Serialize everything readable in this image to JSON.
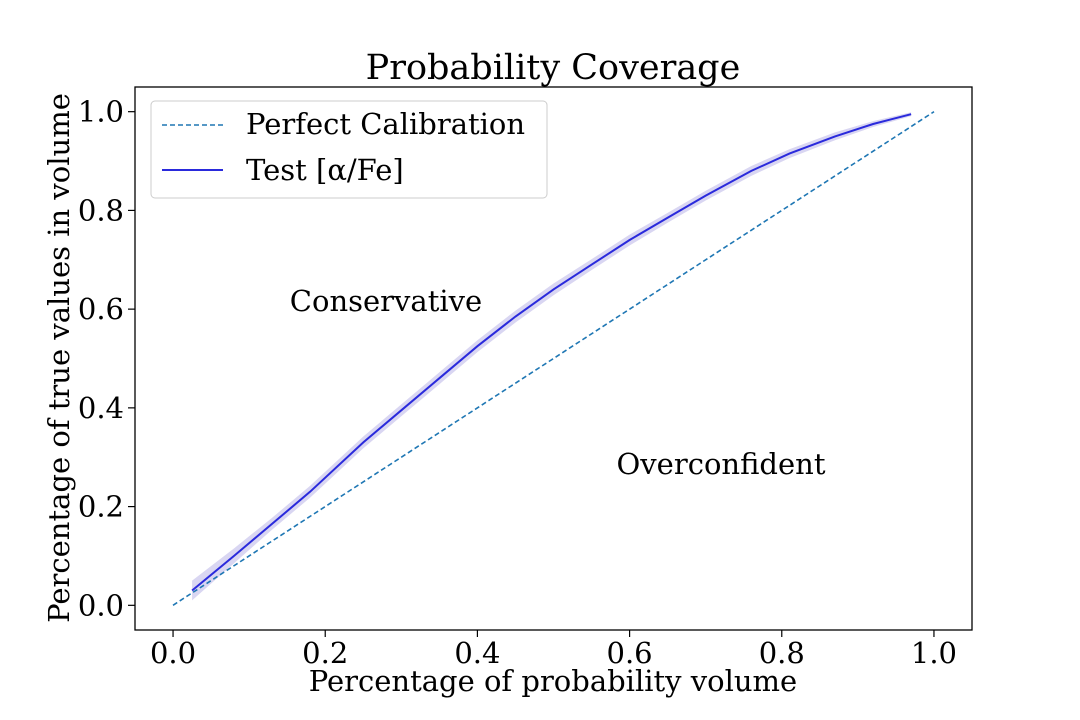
{
  "chart_data": {
    "type": "line",
    "title": "Probability Coverage",
    "xlabel": "Percentage of probability volume",
    "ylabel": "Percentage of true values in volume",
    "xlim": [
      -0.05,
      1.05
    ],
    "ylim": [
      -0.05,
      1.05
    ],
    "xticks": [
      0.0,
      0.2,
      0.4,
      0.6,
      0.8,
      1.0
    ],
    "yticks": [
      0.0,
      0.2,
      0.4,
      0.6,
      0.8,
      1.0
    ],
    "xtick_labels": [
      "0.0",
      "0.2",
      "0.4",
      "0.6",
      "0.8",
      "1.0"
    ],
    "ytick_labels": [
      "0.0",
      "0.2",
      "0.4",
      "0.6",
      "0.8",
      "1.0"
    ],
    "grid": false,
    "legend_position": "top-left",
    "series": [
      {
        "name": "Perfect Calibration",
        "style": "dashed",
        "color": "#1f77b4",
        "x": [
          0.0,
          1.0
        ],
        "y": [
          0.0,
          1.0
        ]
      },
      {
        "name": "Test [α/Fe]",
        "style": "solid",
        "color": "#2a2adc",
        "band_color": "#d9d6f2",
        "x": [
          0.025,
          0.08,
          0.13,
          0.18,
          0.25,
          0.3,
          0.35,
          0.4,
          0.45,
          0.5,
          0.55,
          0.6,
          0.65,
          0.7,
          0.76,
          0.81,
          0.87,
          0.92,
          0.97
        ],
        "y": [
          0.03,
          0.1,
          0.165,
          0.23,
          0.33,
          0.395,
          0.46,
          0.525,
          0.585,
          0.64,
          0.69,
          0.74,
          0.785,
          0.83,
          0.88,
          0.915,
          0.95,
          0.975,
          0.995
        ],
        "band_half_width": [
          0.02,
          0.015,
          0.012,
          0.012,
          0.012,
          0.012,
          0.012,
          0.012,
          0.012,
          0.012,
          0.011,
          0.011,
          0.01,
          0.01,
          0.01,
          0.009,
          0.008,
          0.006,
          0.004
        ]
      }
    ],
    "annotations": [
      {
        "text": "Conservative",
        "x": 0.28,
        "y": 0.6
      },
      {
        "text": "Overconfident",
        "x": 0.72,
        "y": 0.27
      }
    ]
  }
}
